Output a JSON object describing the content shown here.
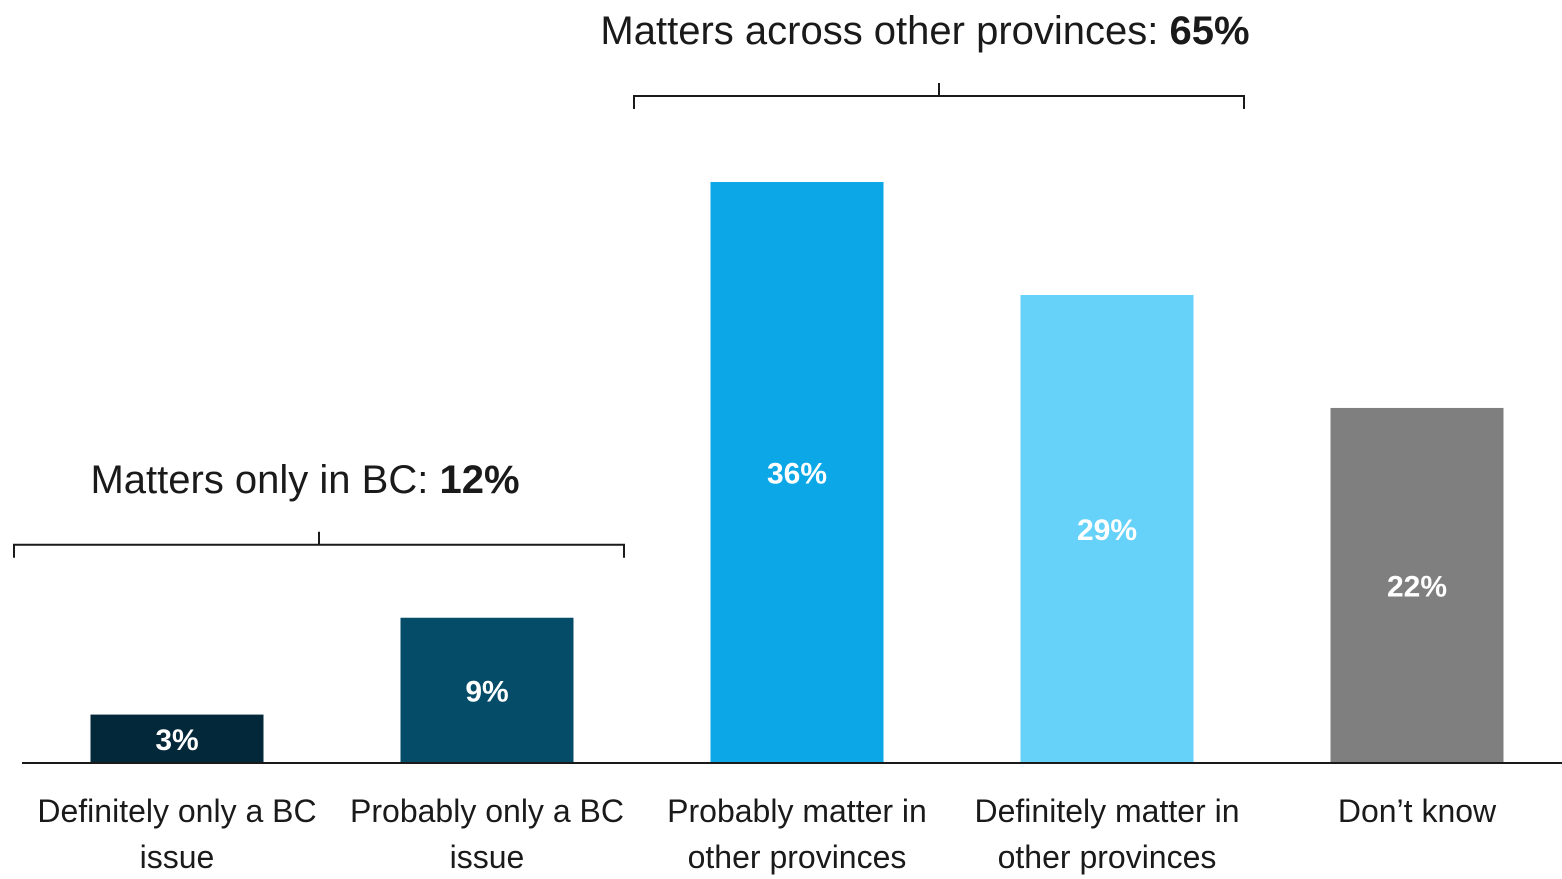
{
  "chart_data": {
    "type": "bar",
    "categories": [
      [
        "Definitely only a BC",
        "issue"
      ],
      [
        "Probably only a BC",
        "issue"
      ],
      [
        "Probably matter in",
        "other provinces"
      ],
      [
        "Definitely matter in",
        "other provinces"
      ],
      [
        "Don’t know"
      ]
    ],
    "values": [
      3,
      9,
      36,
      29,
      22
    ],
    "data_labels": [
      "3%",
      "9%",
      "36%",
      "29%",
      "22%"
    ],
    "colors": [
      "#03283a",
      "#044c68",
      "#0ba7e6",
      "#66d2f9",
      "#7f7f7f"
    ],
    "ylim": [
      0,
      38
    ],
    "grid": false,
    "legend": "none",
    "groups": [
      {
        "label": "Matters only in BC: ",
        "value": "12%",
        "first": 0,
        "last": 1
      },
      {
        "label": "Matters across other provinces: ",
        "value": "65%",
        "first": 2,
        "last": 3
      }
    ]
  }
}
